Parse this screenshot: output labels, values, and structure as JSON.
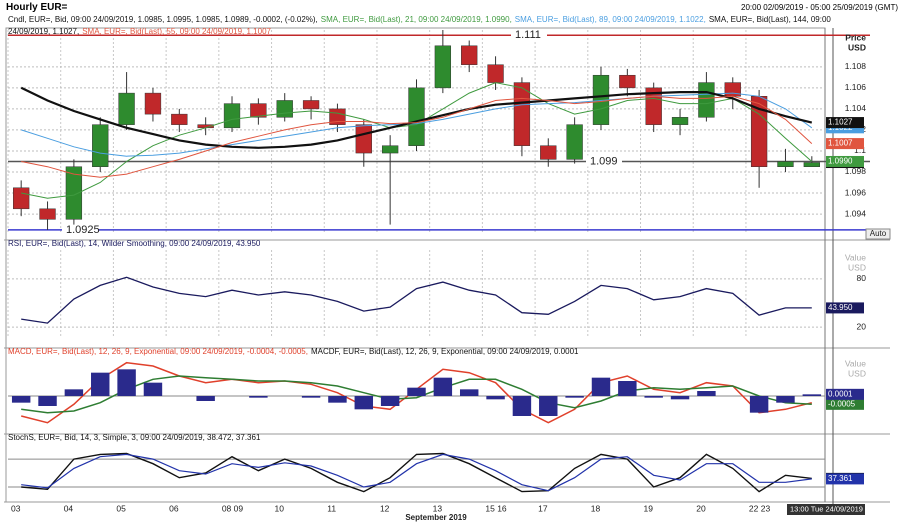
{
  "chart_data": [
    {
      "type": "candlestick",
      "title": "Hourly EUR=",
      "subtitle": "20:00 02/09/2019 - 05:00 25/09/2019 (GMT)",
      "candle_label": "Cndl, EUR=, Bid, 09:00 24/09/2019, 1.0985, 1.0995, 1.0985, 1.0989, -0.0002, (-0.02%),",
      "y_label": [
        "Price",
        "USD"
      ],
      "button": "Auto",
      "x_label": "September 2019",
      "cursor_label": "13:00 Tue 24/09/2019",
      "categories": [
        "03",
        null,
        "04",
        null,
        "05",
        null,
        "06",
        null,
        "08 09",
        null,
        "10",
        null,
        "11",
        null,
        "12",
        null,
        "13",
        null,
        "15 16",
        null,
        "17",
        null,
        "18",
        null,
        "19",
        null,
        "20",
        null,
        "22 23",
        null,
        null
      ],
      "open": [
        1.0965,
        1.0945,
        1.0935,
        1.0985,
        1.1025,
        1.1055,
        1.1035,
        1.1025,
        1.1022,
        1.1045,
        1.1032,
        1.1048,
        1.104,
        1.1025,
        1.0998,
        1.1005,
        1.106,
        1.11,
        1.1082,
        1.1065,
        1.1005,
        1.0992,
        1.1025,
        1.1072,
        1.106,
        1.1025,
        1.1032,
        1.1065,
        1.1052,
        1.0985,
        1.0985
      ],
      "high": [
        1.0972,
        1.0952,
        1.0992,
        1.1032,
        1.1075,
        1.106,
        1.104,
        1.1032,
        1.1052,
        1.105,
        1.1055,
        1.1052,
        1.1045,
        1.103,
        1.1015,
        1.1068,
        1.1115,
        1.1105,
        1.109,
        1.107,
        1.1012,
        1.1032,
        1.108,
        1.1078,
        1.1065,
        1.104,
        1.1075,
        1.107,
        1.1058,
        1.1002,
        1.0995
      ],
      "low": [
        1.0938,
        1.0925,
        1.093,
        1.098,
        1.102,
        1.1028,
        1.1018,
        1.1015,
        1.1018,
        1.1025,
        1.1028,
        1.103,
        1.1018,
        1.0985,
        1.093,
        1.1,
        1.1055,
        1.1075,
        1.1058,
        1.0995,
        1.0985,
        1.0988,
        1.102,
        1.1052,
        1.1018,
        1.1015,
        1.1028,
        1.104,
        1.0965,
        1.098,
        1.0985
      ],
      "close": [
        1.0945,
        1.0935,
        1.0985,
        1.1025,
        1.1055,
        1.1035,
        1.1025,
        1.1022,
        1.1045,
        1.1032,
        1.1048,
        1.104,
        1.1025,
        1.0998,
        1.1005,
        1.106,
        1.11,
        1.1082,
        1.1065,
        1.1005,
        1.0992,
        1.1025,
        1.1072,
        1.106,
        1.1025,
        1.1032,
        1.1065,
        1.1052,
        1.0985,
        1.099,
        1.0989
      ],
      "up_color": "#2e8b2e",
      "down_color": "#c0282a",
      "series": [
        {
          "name": "SMA, EUR=, Bid(Last), 21, 09:00 24/09/2019, 1.0990,",
          "color": "#3f9a3f",
          "width": 1,
          "last_label": "1.0990",
          "values": [
            1.096,
            1.0955,
            1.0958,
            1.097,
            1.099,
            1.1005,
            1.1015,
            1.1022,
            1.103,
            1.1033,
            1.1036,
            1.1038,
            1.1036,
            1.103,
            1.1022,
            1.1025,
            1.104,
            1.1055,
            1.1065,
            1.106,
            1.1045,
            1.1035,
            1.104,
            1.1048,
            1.105,
            1.1045,
            1.1045,
            1.105,
            1.1035,
            1.1012,
            1.099
          ]
        },
        {
          "name": "SMA, EUR=, Bid(Last), 89, 09:00 24/09/2019, 1.1022,",
          "color": "#4a9ee0",
          "width": 1,
          "last_label": "1.1022",
          "values": [
            1.102,
            1.1012,
            1.1004,
            1.0998,
            1.0995,
            1.0996,
            1.0998,
            1.1002,
            1.1006,
            1.101,
            1.1014,
            1.1018,
            1.1022,
            1.1024,
            1.1025,
            1.1026,
            1.103,
            1.1035,
            1.104,
            1.1044,
            1.1045,
            1.1046,
            1.1048,
            1.105,
            1.1052,
            1.1053,
            1.1054,
            1.1055,
            1.1052,
            1.104,
            1.1022
          ]
        },
        {
          "name": "SMA, EUR=, Bid(Last), 144, 09:00 24/09/2019, 1.1027,",
          "color": "#111111",
          "width": 2.2,
          "values": [
            1.106,
            1.1048,
            1.1038,
            1.103,
            1.1022,
            1.1016,
            1.101,
            1.1006,
            1.1004,
            1.1003,
            1.1004,
            1.1006,
            1.101,
            1.1016,
            1.1022,
            1.1028,
            1.1034,
            1.104,
            1.1044,
            1.1046,
            1.1048,
            1.105,
            1.1052,
            1.1054,
            1.1055,
            1.1056,
            1.1056,
            1.105,
            1.104,
            1.1033,
            1.1027
          ]
        },
        {
          "name": "SMA, EUR=, Bid(Last), 55, 09:00 24/09/2019, 1.1007",
          "color": "#e0553f",
          "width": 1,
          "values": [
            1.099,
            1.0985,
            1.0978,
            1.0975,
            1.0978,
            1.0985,
            1.0992,
            1.1,
            1.1008,
            1.1014,
            1.102,
            1.1025,
            1.1028,
            1.1028,
            1.1026,
            1.1027,
            1.1032,
            1.104,
            1.1048,
            1.105,
            1.1048,
            1.1045,
            1.1047,
            1.105,
            1.1052,
            1.105,
            1.105,
            1.1052,
            1.1045,
            1.103,
            1.1007
          ]
        }
      ],
      "hlines": [
        {
          "value": 1.111,
          "color": "#c0282a"
        },
        {
          "value": 1.099,
          "color": "#555555"
        },
        {
          "value": 1.0925,
          "color": "#3a3ad0"
        }
      ],
      "ylim": [
        1.0922,
        1.1115
      ],
      "yticks": [
        1.094,
        1.096,
        1.098,
        1.1,
        1.102,
        1.104,
        1.106,
        1.108
      ],
      "grid": true
    },
    {
      "type": "line",
      "y_label": [
        "Value",
        "USD"
      ],
      "series": [
        {
          "name": "RSI, EUR=, Bid(Last), 14, Wilder Smoothing, 09:00 24/09/2019, 43.950",
          "color": "#1a1a5e",
          "width": 1.3,
          "last_label": "43.950",
          "values": [
            30,
            25,
            55,
            72,
            82,
            70,
            62,
            58,
            66,
            60,
            64,
            60,
            52,
            40,
            45,
            68,
            76,
            66,
            60,
            38,
            36,
            52,
            72,
            68,
            54,
            58,
            68,
            62,
            35,
            44,
            43.95
          ]
        }
      ],
      "ylim": [
        9,
        116
      ],
      "yticks": [
        80,
        20
      ],
      "grid": true
    },
    {
      "type": "line",
      "y_label": [
        "Value",
        "USD"
      ],
      "series": [
        {
          "name": "MACD, EUR=, Bid(Last), 12, 26, 9, Exponential, 09:00 24/09/2019, -0.0004, -0.0005,",
          "color": "#e0402b",
          "width": 1.5,
          "values": [
            -0.0012,
            -0.0016,
            -0.0005,
            0.001,
            0.002,
            0.0018,
            0.0012,
            0.0008,
            0.001,
            0.0008,
            0.0009,
            0.0007,
            0.0002,
            -0.0006,
            -0.0008,
            0.0004,
            0.0016,
            0.0014,
            0.0008,
            -0.0008,
            -0.0016,
            -0.0008,
            0.0008,
            0.0012,
            0.0004,
            0.0002,
            0.0008,
            0.0006,
            -0.001,
            -0.0008,
            -0.0004
          ]
        },
        {
          "color": "#2e7d32",
          "width": 1.5,
          "values": [
            -0.0008,
            -0.001,
            -0.0009,
            -0.0004,
            0.0004,
            0.001,
            0.0012,
            0.0011,
            0.001,
            0.0009,
            0.0009,
            0.0008,
            0.0006,
            0.0002,
            -0.0002,
            -0.0001,
            0.0005,
            0.001,
            0.001,
            0.0004,
            -0.0004,
            -0.0007,
            -0.0003,
            0.0003,
            0.0005,
            0.0004,
            0.0005,
            0.0006,
            0,
            -0.0004,
            -0.0005
          ]
        },
        {
          "name": "MACDF, EUR=, Bid(Last), 12, 26, 9, Exponential, 09:00 24/09/2019, 0.0001",
          "color": "#2a2a8c",
          "style": "bar",
          "values": [
            -0.0004,
            -0.0006,
            0.0004,
            0.0014,
            0.0016,
            0.0008,
            0,
            -0.0003,
            0,
            -0.0001,
            0,
            -0.0001,
            -0.0004,
            -0.0008,
            -0.0006,
            0.0005,
            0.0011,
            0.0004,
            -0.0002,
            -0.0012,
            -0.0012,
            -0.0001,
            0.0011,
            0.0009,
            -0.0001,
            -0.0002,
            0.0003,
            0,
            -0.001,
            -0.0004,
            0.0001
          ]
        }
      ],
      "ylim": [
        -0.0024,
        0.0024
      ],
      "levels": [
        0
      ]
    },
    {
      "type": "line",
      "series": [
        {
          "name": "StochS, EUR=, Bid, 14, 3, Simple, 3, 09:00 24/09/2019, 38.472, 37.361",
          "color": "#111111",
          "width": 1.4,
          "values": [
            20,
            15,
            80,
            90,
            92,
            70,
            40,
            50,
            85,
            55,
            80,
            60,
            30,
            10,
            40,
            90,
            92,
            70,
            40,
            10,
            12,
            60,
            90,
            80,
            20,
            40,
            90,
            60,
            10,
            45,
            38.472
          ]
        },
        {
          "color": "#2233aa",
          "width": 1.2,
          "values": [
            25,
            18,
            60,
            85,
            90,
            80,
            55,
            48,
            70,
            62,
            72,
            65,
            45,
            20,
            30,
            70,
            90,
            80,
            55,
            25,
            12,
            40,
            80,
            85,
            45,
            35,
            70,
            70,
            30,
            30,
            37.361
          ]
        }
      ],
      "ylim": [
        -8,
        121
      ],
      "levels": [
        80,
        20
      ]
    }
  ]
}
